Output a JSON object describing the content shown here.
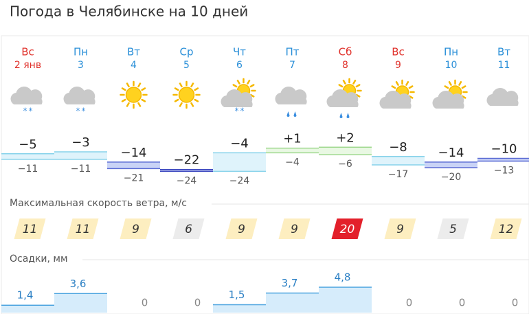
{
  "title": "Погода в Челябинске на 10 дней",
  "days": [
    {
      "weekday": "Вс",
      "date": "2 янв",
      "weekend": true,
      "icon": "cloud-snow"
    },
    {
      "weekday": "Пн",
      "date": "3",
      "weekend": false,
      "icon": "cloud-snow"
    },
    {
      "weekday": "Вт",
      "date": "4",
      "weekend": false,
      "icon": "sun"
    },
    {
      "weekday": "Ср",
      "date": "5",
      "weekend": false,
      "icon": "sun"
    },
    {
      "weekday": "Чт",
      "date": "6",
      "weekend": false,
      "icon": "partly-snow"
    },
    {
      "weekday": "Пт",
      "date": "7",
      "weekend": false,
      "icon": "cloud-rain-snow"
    },
    {
      "weekday": "Сб",
      "date": "8",
      "weekend": true,
      "icon": "partly-rain-snow"
    },
    {
      "weekday": "Вс",
      "date": "9",
      "weekend": true,
      "icon": "partly-cloudy"
    },
    {
      "weekday": "Пн",
      "date": "10",
      "weekend": false,
      "icon": "partly-cloudy"
    },
    {
      "weekday": "Вт",
      "date": "11",
      "weekend": false,
      "icon": "cloud"
    }
  ],
  "temp_max": [
    {
      "value": -5,
      "label": "−5"
    },
    {
      "value": -3,
      "label": "−3"
    },
    {
      "value": -14,
      "label": "−14"
    },
    {
      "value": -22,
      "label": "−22"
    },
    {
      "value": -4,
      "label": "−4"
    },
    {
      "value": 1,
      "label": "+1"
    },
    {
      "value": 2,
      "label": "+2"
    },
    {
      "value": -8,
      "label": "−8"
    },
    {
      "value": -14,
      "label": "−14"
    },
    {
      "value": -10,
      "label": "−10"
    }
  ],
  "temp_min": [
    {
      "value": -11,
      "label": "−11"
    },
    {
      "value": -11,
      "label": "−11"
    },
    {
      "value": -21,
      "label": "−21"
    },
    {
      "value": -24,
      "label": "−24"
    },
    {
      "value": -24,
      "label": "−24"
    },
    {
      "value": -4,
      "label": "−4"
    },
    {
      "value": -6,
      "label": "−6"
    },
    {
      "value": -17,
      "label": "−17"
    },
    {
      "value": -20,
      "label": "−20"
    },
    {
      "value": -13,
      "label": "−13"
    }
  ],
  "wind": {
    "title": "Максимальная скорость ветра, м/с",
    "values": [
      11,
      11,
      9,
      6,
      9,
      9,
      20,
      9,
      5,
      12
    ]
  },
  "precipitation": {
    "title": "Осадки, мм",
    "values": [
      {
        "value": 1.4,
        "label": "1,4"
      },
      {
        "value": 3.6,
        "label": "3,6"
      },
      0,
      0,
      {
        "value": 1.5,
        "label": "1,5"
      },
      {
        "value": 3.7,
        "label": "3,7"
      },
      {
        "value": 4.8,
        "label": "4,8"
      },
      0,
      0,
      0
    ]
  }
}
